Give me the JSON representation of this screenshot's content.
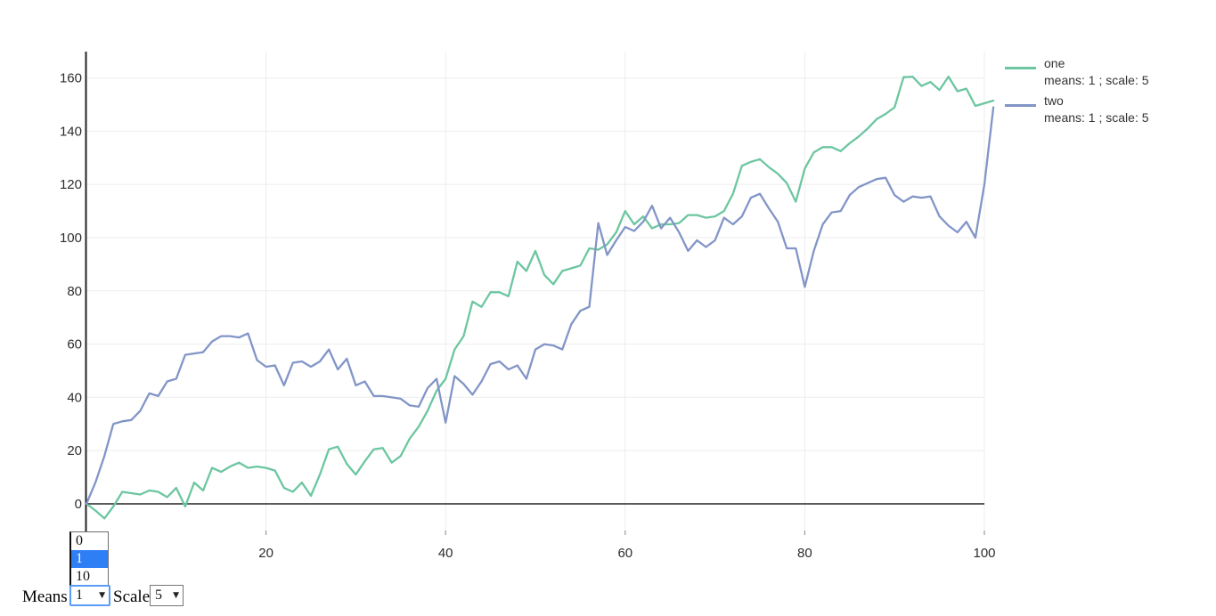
{
  "chart_data": {
    "type": "line",
    "title": "",
    "xlabel": "",
    "ylabel": "",
    "x_axis": {
      "min": 0,
      "max": 101,
      "ticks": [
        20,
        40,
        60,
        80,
        100
      ]
    },
    "y_axis": {
      "min": -11,
      "max": 170,
      "ticks": [
        0,
        20,
        40,
        60,
        80,
        100,
        120,
        140,
        160
      ]
    },
    "grid": true,
    "grid_color": "#ededed",
    "axis_color": "#242424",
    "tick_color": "#9a9a9a",
    "legend_position": "right",
    "x": "0..101 step 1",
    "series": [
      {
        "name": "one",
        "legend_note": "means: 1 ; scale: 5",
        "color": "#6cc6a0",
        "values": [
          0,
          -2.5,
          -5.5,
          -1,
          4.5,
          4,
          3.5,
          5,
          4.5,
          2.5,
          6,
          -1,
          8,
          5,
          13.5,
          12,
          14,
          15.5,
          13.5,
          14,
          13.5,
          12.5,
          6,
          4.5,
          8,
          3,
          11,
          20.5,
          21.5,
          15,
          11,
          16,
          20.5,
          21,
          15.5,
          18,
          24.5,
          29,
          35,
          42.5,
          47,
          58,
          63,
          76,
          74,
          79.5,
          79.5,
          78,
          91,
          87.5,
          95,
          86,
          82.5,
          87.5,
          88.5,
          89.5,
          96,
          95.5,
          97.5,
          102,
          110,
          105,
          108,
          103.5,
          105,
          105,
          105.5,
          108.5,
          108.5,
          107.5,
          108,
          110,
          116.5,
          127,
          128.5,
          129.5,
          126.5,
          124,
          120.5,
          113.5,
          126,
          132,
          134,
          134,
          132.5,
          135.5,
          138,
          141,
          144.5,
          146.5,
          149,
          160.3,
          160.5,
          157,
          158.5,
          155.5,
          160.5,
          155,
          156,
          149.5,
          150.5,
          151.5
        ]
      },
      {
        "name": "two",
        "legend_note": "means: 1 ; scale: 5",
        "color": "#8295c7",
        "values": [
          0,
          8,
          18,
          30,
          31,
          31.5,
          35,
          41.5,
          40.5,
          46,
          47,
          56,
          56.5,
          57,
          61,
          63,
          63,
          62.5,
          64,
          54,
          51.5,
          52,
          44.5,
          53,
          53.5,
          51.5,
          53.5,
          58,
          50.5,
          54.5,
          44.5,
          46,
          40.5,
          40.5,
          40,
          39.5,
          37,
          36.5,
          43.5,
          47,
          30.5,
          48,
          45,
          41,
          46,
          52.5,
          53.5,
          50.5,
          52,
          47,
          58,
          60,
          59.5,
          58,
          67.5,
          72.5,
          74,
          105.5,
          93.5,
          99,
          104,
          102.5,
          106,
          112,
          103.5,
          107.5,
          102,
          95,
          99,
          96.5,
          99,
          107.5,
          105,
          108,
          115,
          116.5,
          111,
          106,
          96,
          96,
          81.5,
          95,
          105,
          109.5,
          110,
          116,
          119,
          120.5,
          122,
          122.5,
          116,
          113.5,
          115.5,
          115,
          115.5,
          108,
          104.5,
          102,
          106,
          100,
          120,
          149
        ]
      }
    ]
  },
  "controls": {
    "means_label": "Means",
    "means_value": "1",
    "scale_label": "Scale",
    "scale_value": "5",
    "dropdown": {
      "options": [
        "0",
        "1",
        "10"
      ],
      "selected": "1",
      "selected_index": 1
    },
    "select_arrow": "▼"
  }
}
